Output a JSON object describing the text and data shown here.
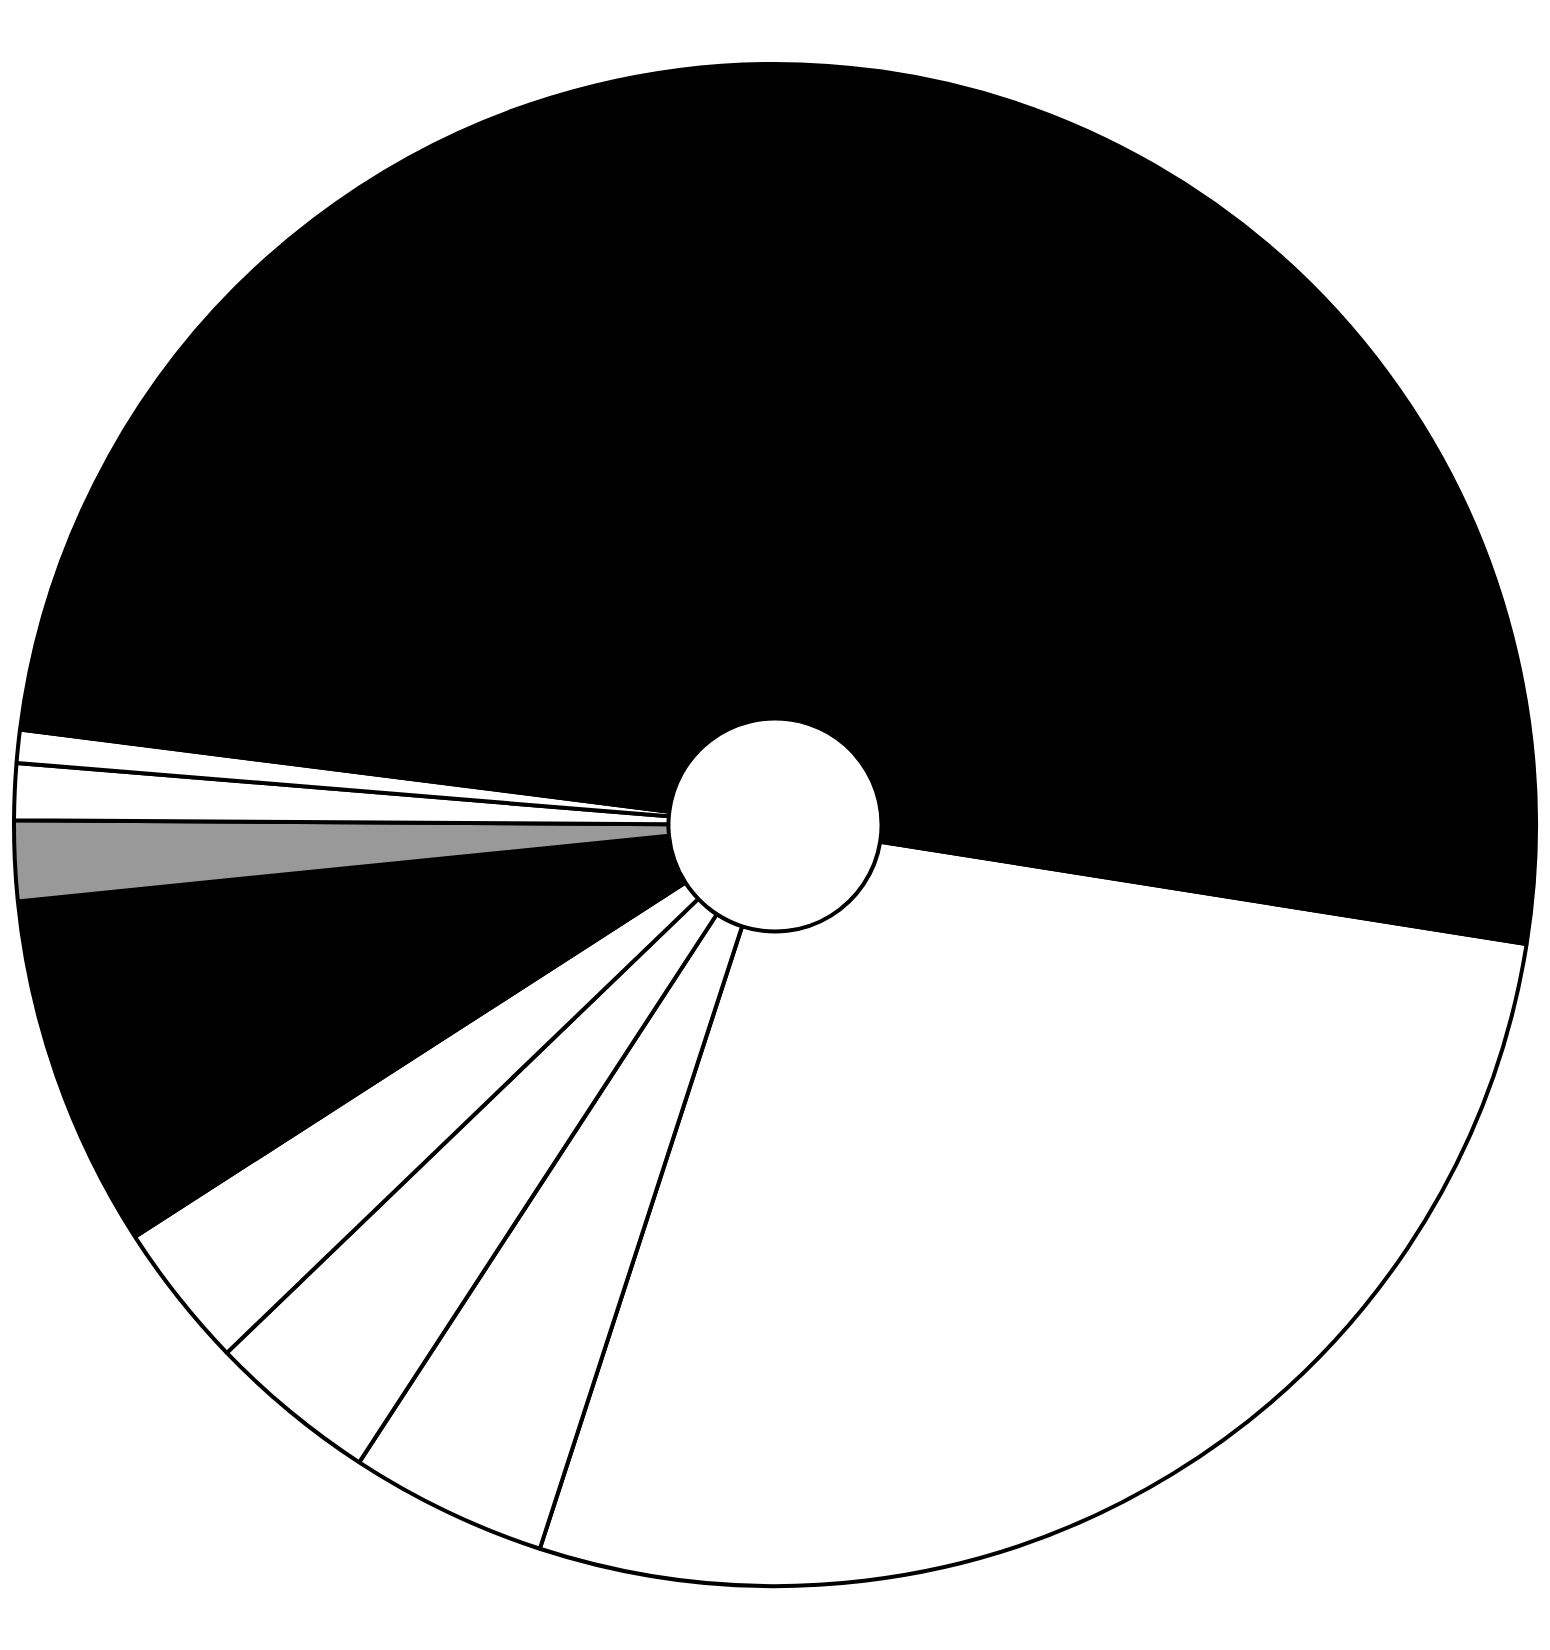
{
  "chart_data": {
    "type": "donut",
    "categories": [
      null,
      null,
      null,
      null,
      null,
      null,
      null,
      null,
      null
    ],
    "values": [
      27.5,
      4.2,
      3.6,
      3.1,
      7.5,
      1.7,
      1.2,
      0.7,
      50.5
    ],
    "colors": [
      "#ffffff",
      "#ffffff",
      "#ffffff",
      "#ffffff",
      "#000000",
      "#999999",
      "#ffffff",
      "#ffffff",
      "#000000"
    ],
    "legend": false
  }
}
